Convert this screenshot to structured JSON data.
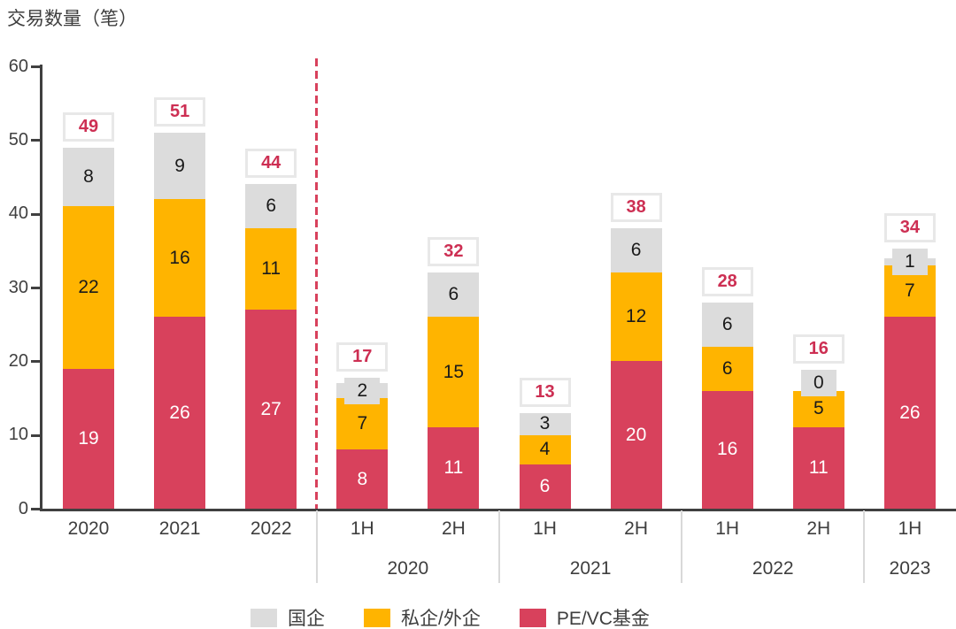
{
  "title": "交易数量（笔）",
  "chart_data": {
    "type": "bar",
    "stacked": true,
    "title": "交易数量（笔）",
    "ylabel": "交易数量（笔）",
    "ylim": [
      0,
      60
    ],
    "yticks": [
      0,
      10,
      20,
      30,
      40,
      50,
      60
    ],
    "grid": false,
    "legend_position": "bottom",
    "stack_order": [
      "pevc",
      "private",
      "soe"
    ],
    "series": [
      {
        "key": "soe",
        "name": "国企",
        "color": "#dcdcdc",
        "text_color": "#1a1a1a"
      },
      {
        "key": "private",
        "name": "私企/外企",
        "color": "#ffb400",
        "text_color": "#1a1a1a"
      },
      {
        "key": "pevc",
        "name": "PE/VC基金",
        "color": "#d8415c",
        "text_color": "#ffffff"
      }
    ],
    "total_label_color": "#cd2f53",
    "bars": [
      {
        "x_label": "2020",
        "group": "",
        "pevc": 19,
        "private": 22,
        "soe": 8,
        "total": 49
      },
      {
        "x_label": "2021",
        "group": "",
        "pevc": 26,
        "private": 16,
        "soe": 9,
        "total": 51
      },
      {
        "x_label": "2022",
        "group": "",
        "pevc": 27,
        "private": 11,
        "soe": 6,
        "total": 44
      },
      {
        "x_label": "1H",
        "group": "2020",
        "pevc": 8,
        "private": 7,
        "soe": 2,
        "total": 17
      },
      {
        "x_label": "2H",
        "group": "2020",
        "pevc": 11,
        "private": 15,
        "soe": 6,
        "total": 32
      },
      {
        "x_label": "1H",
        "group": "2021",
        "pevc": 6,
        "private": 4,
        "soe": 3,
        "total": 13
      },
      {
        "x_label": "2H",
        "group": "2021",
        "pevc": 20,
        "private": 12,
        "soe": 6,
        "total": 38
      },
      {
        "x_label": "1H",
        "group": "2022",
        "pevc": 16,
        "private": 6,
        "soe": 6,
        "total": 28
      },
      {
        "x_label": "2H",
        "group": "2022",
        "pevc": 11,
        "private": 5,
        "soe": 0,
        "total": 16
      },
      {
        "x_label": "1H",
        "group": "2023",
        "pevc": 26,
        "private": 7,
        "soe": 1,
        "total": 34
      }
    ],
    "group_axis": [
      {
        "label": "2020",
        "from": 3,
        "to": 4
      },
      {
        "label": "2021",
        "from": 5,
        "to": 6
      },
      {
        "label": "2022",
        "from": 7,
        "to": 8
      },
      {
        "label": "2023",
        "from": 9,
        "to": 9
      }
    ],
    "annual_vs_half_separator": {
      "style": "dashed",
      "color": "#d8415c",
      "between_bars": [
        2,
        3
      ]
    }
  }
}
